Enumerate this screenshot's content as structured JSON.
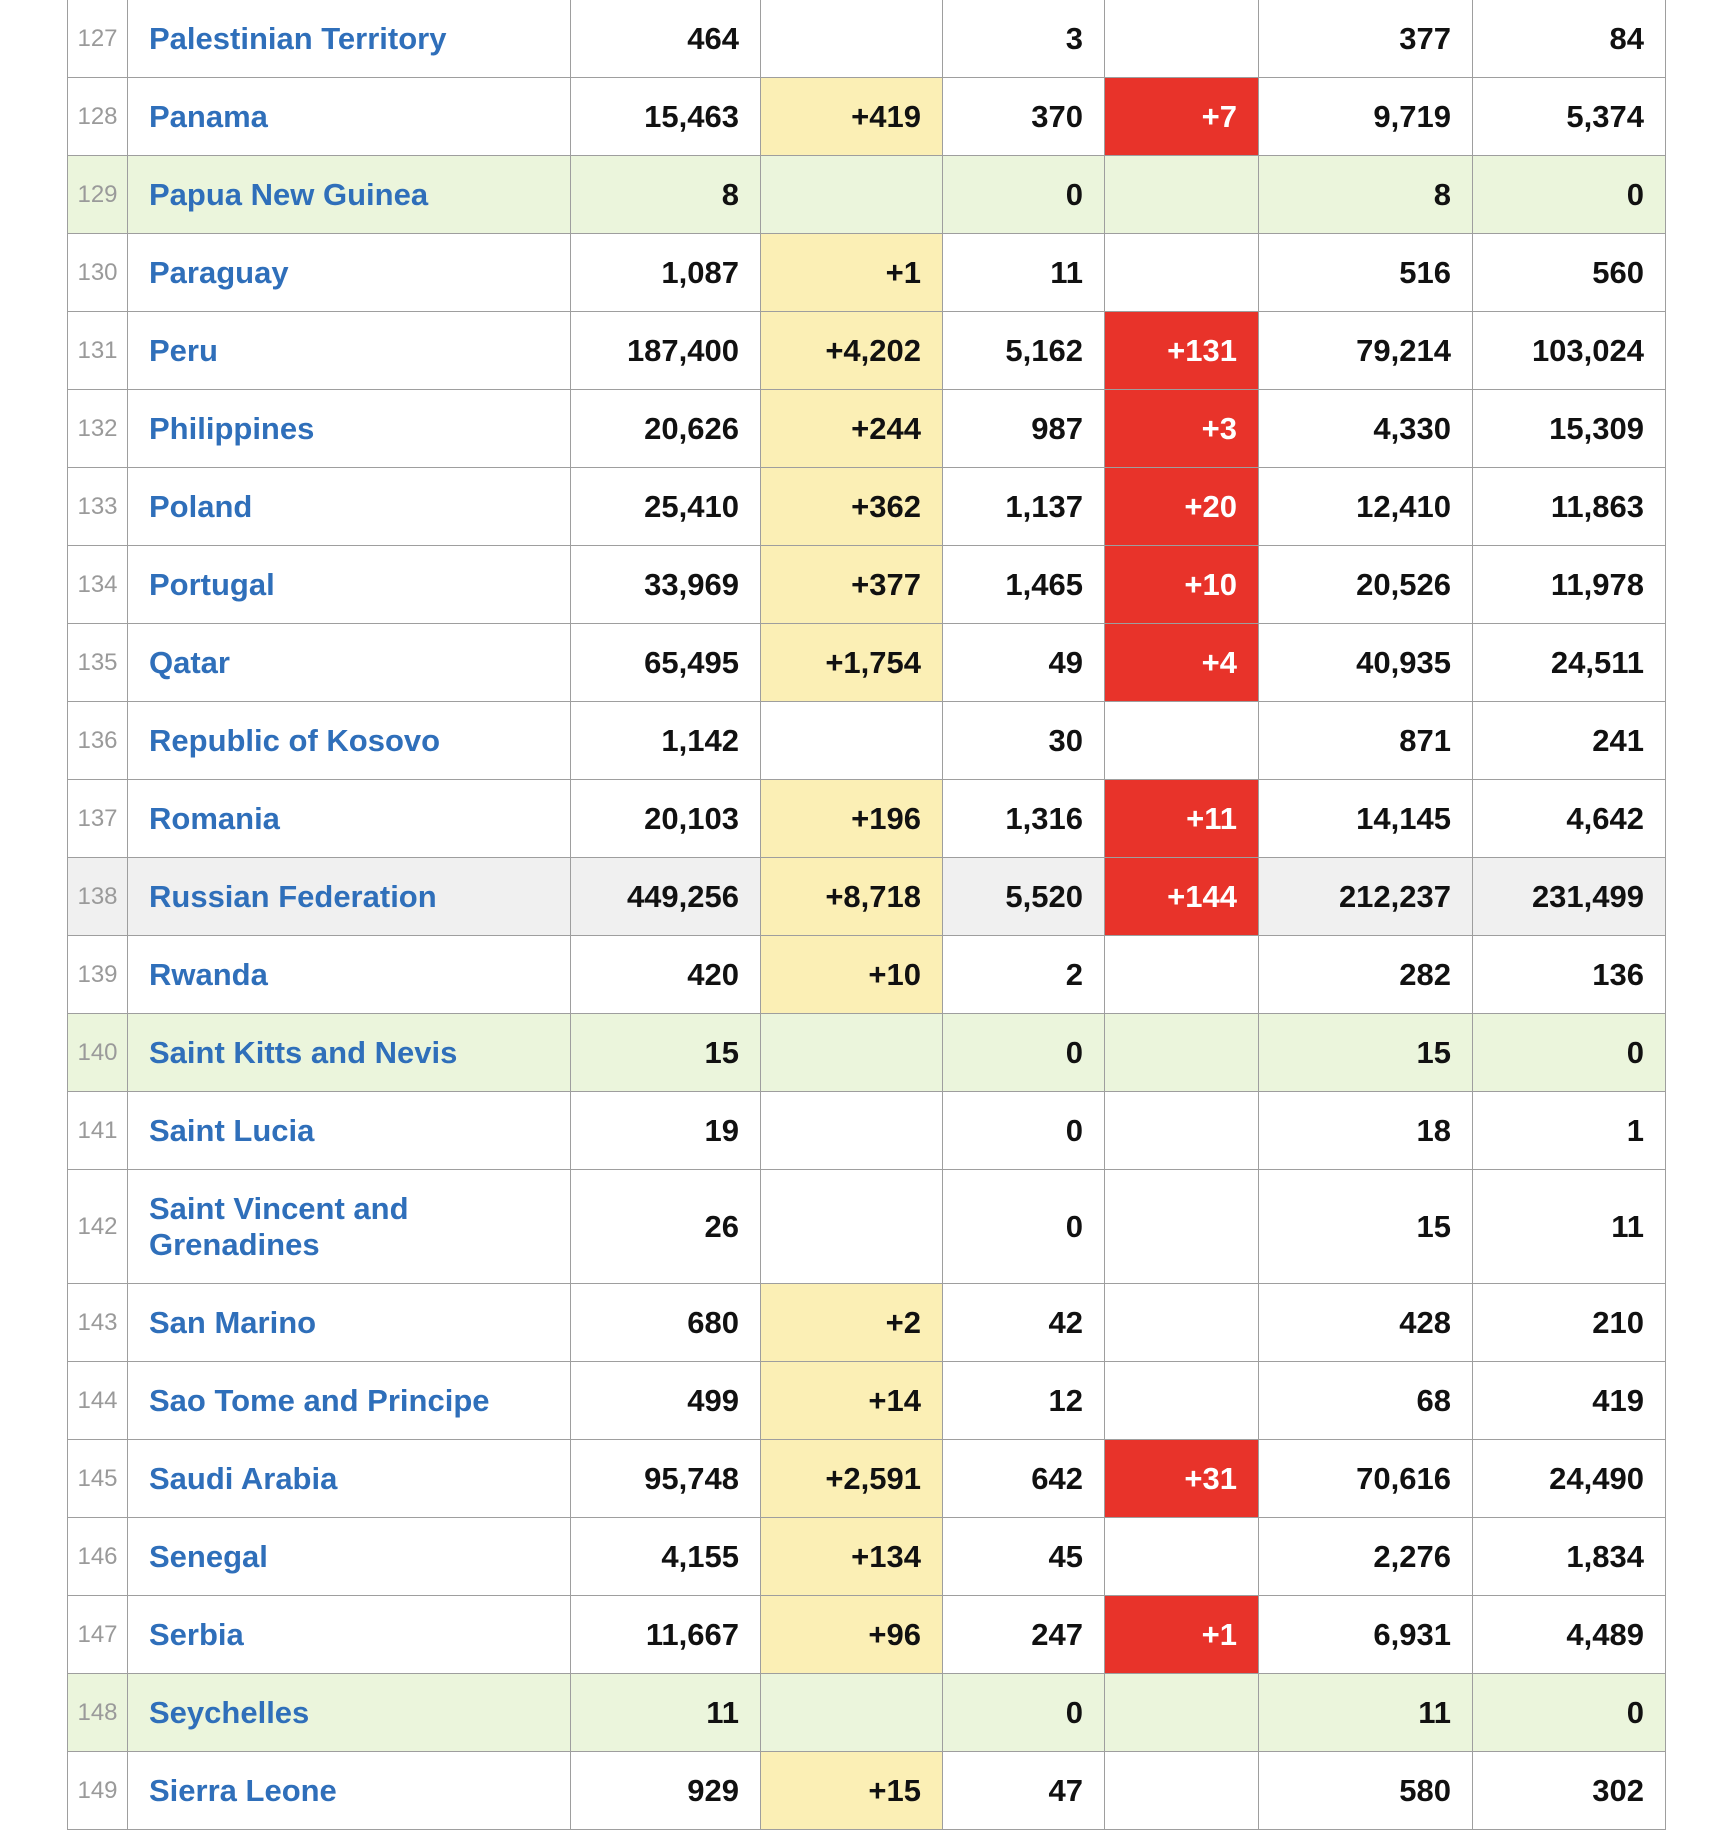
{
  "colors": {
    "country_link": "#2f6fba",
    "new_cases_bg": "#fbefb5",
    "new_deaths_bg": "#e8332a",
    "row_green_bg": "#ebf5dc",
    "row_gray_bg": "#f0f0f0",
    "border": "#9e9e9e"
  },
  "table": {
    "rows": [
      {
        "rank": "127",
        "country": "Palestinian Territory",
        "total_cases": "464",
        "new_cases": "",
        "total_deaths": "3",
        "new_deaths": "",
        "total_recovered": "377",
        "active_cases": "84",
        "row_style": "plain"
      },
      {
        "rank": "128",
        "country": "Panama",
        "total_cases": "15,463",
        "new_cases": "+419",
        "total_deaths": "370",
        "new_deaths": "+7",
        "total_recovered": "9,719",
        "active_cases": "5,374",
        "row_style": "plain"
      },
      {
        "rank": "129",
        "country": "Papua New Guinea",
        "total_cases": "8",
        "new_cases": "",
        "total_deaths": "0",
        "new_deaths": "",
        "total_recovered": "8",
        "active_cases": "0",
        "row_style": "green"
      },
      {
        "rank": "130",
        "country": "Paraguay",
        "total_cases": "1,087",
        "new_cases": "+1",
        "total_deaths": "11",
        "new_deaths": "",
        "total_recovered": "516",
        "active_cases": "560",
        "row_style": "plain"
      },
      {
        "rank": "131",
        "country": "Peru",
        "total_cases": "187,400",
        "new_cases": "+4,202",
        "total_deaths": "5,162",
        "new_deaths": "+131",
        "total_recovered": "79,214",
        "active_cases": "103,024",
        "row_style": "plain"
      },
      {
        "rank": "132",
        "country": "Philippines",
        "total_cases": "20,626",
        "new_cases": "+244",
        "total_deaths": "987",
        "new_deaths": "+3",
        "total_recovered": "4,330",
        "active_cases": "15,309",
        "row_style": "plain"
      },
      {
        "rank": "133",
        "country": "Poland",
        "total_cases": "25,410",
        "new_cases": "+362",
        "total_deaths": "1,137",
        "new_deaths": "+20",
        "total_recovered": "12,410",
        "active_cases": "11,863",
        "row_style": "plain"
      },
      {
        "rank": "134",
        "country": "Portugal",
        "total_cases": "33,969",
        "new_cases": "+377",
        "total_deaths": "1,465",
        "new_deaths": "+10",
        "total_recovered": "20,526",
        "active_cases": "11,978",
        "row_style": "plain"
      },
      {
        "rank": "135",
        "country": "Qatar",
        "total_cases": "65,495",
        "new_cases": "+1,754",
        "total_deaths": "49",
        "new_deaths": "+4",
        "total_recovered": "40,935",
        "active_cases": "24,511",
        "row_style": "plain"
      },
      {
        "rank": "136",
        "country": "Republic of Kosovo",
        "total_cases": "1,142",
        "new_cases": "",
        "total_deaths": "30",
        "new_deaths": "",
        "total_recovered": "871",
        "active_cases": "241",
        "row_style": "plain"
      },
      {
        "rank": "137",
        "country": "Romania",
        "total_cases": "20,103",
        "new_cases": "+196",
        "total_deaths": "1,316",
        "new_deaths": "+11",
        "total_recovered": "14,145",
        "active_cases": "4,642",
        "row_style": "plain"
      },
      {
        "rank": "138",
        "country": "Russian Federation",
        "total_cases": "449,256",
        "new_cases": "+8,718",
        "total_deaths": "5,520",
        "new_deaths": "+144",
        "total_recovered": "212,237",
        "active_cases": "231,499",
        "row_style": "gray"
      },
      {
        "rank": "139",
        "country": "Rwanda",
        "total_cases": "420",
        "new_cases": "+10",
        "total_deaths": "2",
        "new_deaths": "",
        "total_recovered": "282",
        "active_cases": "136",
        "row_style": "plain"
      },
      {
        "rank": "140",
        "country": "Saint Kitts and Nevis",
        "total_cases": "15",
        "new_cases": "",
        "total_deaths": "0",
        "new_deaths": "",
        "total_recovered": "15",
        "active_cases": "0",
        "row_style": "green"
      },
      {
        "rank": "141",
        "country": "Saint Lucia",
        "total_cases": "19",
        "new_cases": "",
        "total_deaths": "0",
        "new_deaths": "",
        "total_recovered": "18",
        "active_cases": "1",
        "row_style": "plain"
      },
      {
        "rank": "142",
        "country": "Saint Vincent and Grenadines",
        "total_cases": "26",
        "new_cases": "",
        "total_deaths": "0",
        "new_deaths": "",
        "total_recovered": "15",
        "active_cases": "11",
        "row_style": "plain",
        "tall": true
      },
      {
        "rank": "143",
        "country": "San Marino",
        "total_cases": "680",
        "new_cases": "+2",
        "total_deaths": "42",
        "new_deaths": "",
        "total_recovered": "428",
        "active_cases": "210",
        "row_style": "plain"
      },
      {
        "rank": "144",
        "country": "Sao Tome and Principe",
        "total_cases": "499",
        "new_cases": "+14",
        "total_deaths": "12",
        "new_deaths": "",
        "total_recovered": "68",
        "active_cases": "419",
        "row_style": "plain"
      },
      {
        "rank": "145",
        "country": "Saudi Arabia",
        "total_cases": "95,748",
        "new_cases": "+2,591",
        "total_deaths": "642",
        "new_deaths": "+31",
        "total_recovered": "70,616",
        "active_cases": "24,490",
        "row_style": "plain"
      },
      {
        "rank": "146",
        "country": "Senegal",
        "total_cases": "4,155",
        "new_cases": "+134",
        "total_deaths": "45",
        "new_deaths": "",
        "total_recovered": "2,276",
        "active_cases": "1,834",
        "row_style": "plain"
      },
      {
        "rank": "147",
        "country": "Serbia",
        "total_cases": "11,667",
        "new_cases": "+96",
        "total_deaths": "247",
        "new_deaths": "+1",
        "total_recovered": "6,931",
        "active_cases": "4,489",
        "row_style": "plain"
      },
      {
        "rank": "148",
        "country": "Seychelles",
        "total_cases": "11",
        "new_cases": "",
        "total_deaths": "0",
        "new_deaths": "",
        "total_recovered": "11",
        "active_cases": "0",
        "row_style": "green"
      },
      {
        "rank": "149",
        "country": "Sierra Leone",
        "total_cases": "929",
        "new_cases": "+15",
        "total_deaths": "47",
        "new_deaths": "",
        "total_recovered": "580",
        "active_cases": "302",
        "row_style": "plain"
      }
    ]
  }
}
